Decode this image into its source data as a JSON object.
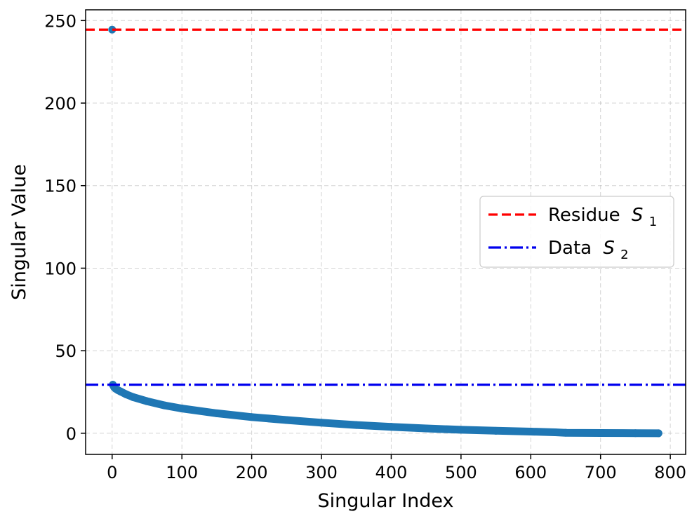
{
  "chart_data": {
    "type": "scatter",
    "xlabel": "Singular Index",
    "ylabel": "Singular Value",
    "xlim": [
      -38,
      822
    ],
    "ylim": [
      -12.8,
      256.5
    ],
    "xticks": [
      0,
      100,
      200,
      300,
      400,
      500,
      600,
      700,
      800
    ],
    "yticks": [
      0,
      50,
      100,
      150,
      200,
      250
    ],
    "grid": true,
    "legend_position": "center-right",
    "colors": {
      "points": "#1f77b4",
      "residue": "#ff0000",
      "data": "#0000ee"
    },
    "series": [
      {
        "kind": "scatter",
        "x": [
          0,
          1,
          2,
          3,
          5,
          8,
          12,
          20,
          30,
          50,
          75,
          100,
          150,
          200,
          250,
          300,
          350,
          400,
          450,
          500,
          550,
          600,
          635,
          650,
          700,
          750,
          783
        ],
        "y": [
          244.5,
          29.4,
          28.6,
          27.8,
          27.0,
          26.2,
          25.3,
          23.6,
          21.9,
          19.4,
          16.9,
          15.0,
          12.1,
          9.8,
          8.0,
          6.4,
          5.0,
          3.9,
          2.9,
          2.1,
          1.5,
          1.0,
          0.6,
          0.3,
          0.15,
          0.05,
          0.0
        ]
      },
      {
        "kind": "hline",
        "name": "Residue",
        "name_sub": "1",
        "name_var": "S",
        "y": 244.5,
        "style": "dashed"
      },
      {
        "kind": "hline",
        "name": "Data",
        "name_sub": "2",
        "name_var": "S",
        "y": 29.4,
        "style": "dashdot"
      }
    ]
  }
}
